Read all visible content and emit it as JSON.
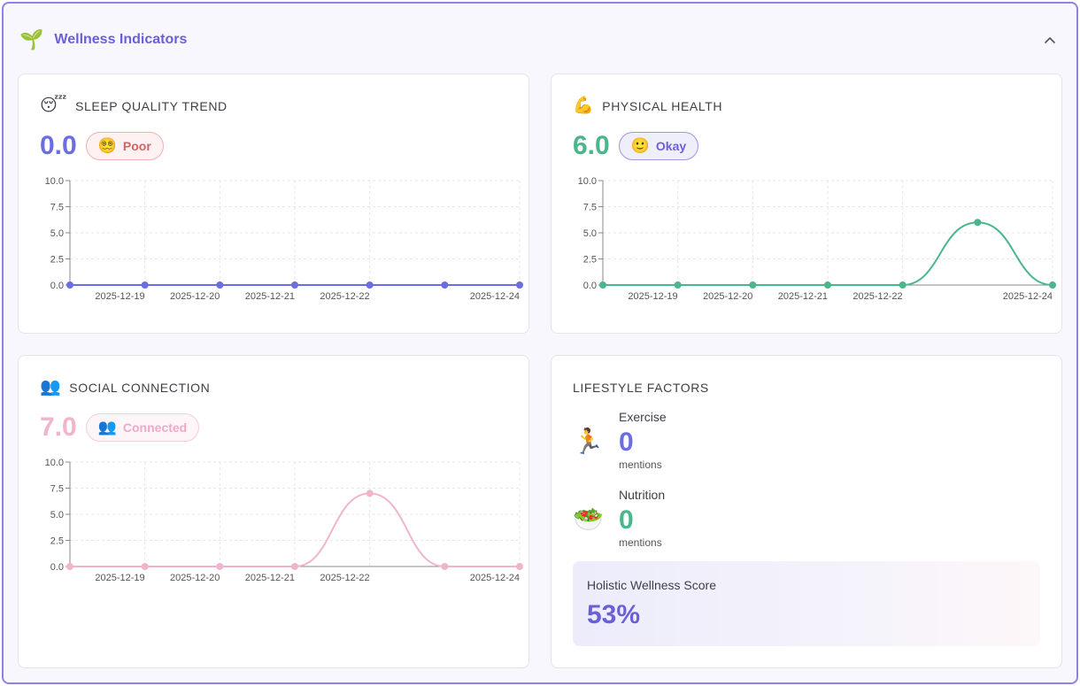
{
  "header": {
    "title": "Wellness Indicators",
    "icon": "sprout-icon"
  },
  "colors": {
    "accent": "#6b5fd8",
    "sleep": "#6b6de3",
    "physical": "#4bb58b",
    "social": "#f0b4cc"
  },
  "sleep": {
    "title": "SLEEP QUALITY TREND",
    "value": "0.0",
    "badge": "Poor",
    "chart_data": {
      "type": "line",
      "x": [
        "",
        "2025-12-19",
        "2025-12-20",
        "2025-12-21",
        "2025-12-22",
        "",
        "2025-12-24"
      ],
      "values": [
        0,
        0,
        0,
        0,
        0,
        0,
        0
      ],
      "ylim": [
        0,
        10
      ],
      "yticks": [
        "0.0",
        "2.5",
        "5.0",
        "7.5",
        "10.0"
      ],
      "grid": true
    }
  },
  "physical": {
    "title": "PHYSICAL HEALTH",
    "value": "6.0",
    "badge": "Okay",
    "chart_data": {
      "type": "line",
      "x": [
        "",
        "2025-12-19",
        "2025-12-20",
        "2025-12-21",
        "2025-12-22",
        "",
        "2025-12-24"
      ],
      "values": [
        0,
        0,
        0,
        0,
        0,
        6,
        0
      ],
      "ylim": [
        0,
        10
      ],
      "yticks": [
        "0.0",
        "2.5",
        "5.0",
        "7.5",
        "10.0"
      ],
      "grid": true
    }
  },
  "social": {
    "title": "SOCIAL CONNECTION",
    "value": "7.0",
    "badge": "Connected",
    "chart_data": {
      "type": "line",
      "x": [
        "",
        "2025-12-19",
        "2025-12-20",
        "2025-12-21",
        "2025-12-22",
        "",
        "2025-12-24"
      ],
      "values": [
        0,
        0,
        0,
        0,
        7,
        0,
        0
      ],
      "ylim": [
        0,
        10
      ],
      "yticks": [
        "0.0",
        "2.5",
        "5.0",
        "7.5",
        "10.0"
      ],
      "grid": true
    }
  },
  "lifestyle": {
    "title": "LIFESTYLE FACTORS",
    "exercise": {
      "label": "Exercise",
      "value": "0",
      "sub": "mentions"
    },
    "nutrition": {
      "label": "Nutrition",
      "value": "0",
      "sub": "mentions"
    },
    "holistic": {
      "label": "Holistic Wellness Score",
      "value": "53%"
    }
  }
}
